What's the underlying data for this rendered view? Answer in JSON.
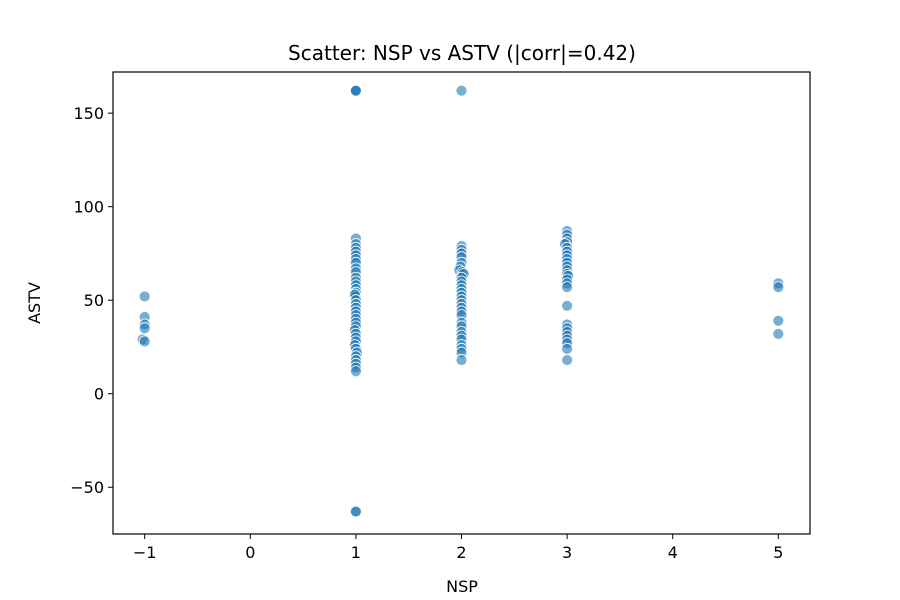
{
  "chart_data": {
    "type": "scatter",
    "title": "Scatter: NSP vs ASTV (|corr|=0.42)",
    "xlabel": "NSP",
    "ylabel": "ASTV",
    "xlim": [
      -1.3,
      5.3
    ],
    "ylim": [
      -75,
      172
    ],
    "xticks": [
      -1,
      0,
      1,
      2,
      3,
      4,
      5
    ],
    "xtick_labels": [
      "−1",
      "0",
      "1",
      "2",
      "3",
      "4",
      "5"
    ],
    "yticks": [
      -50,
      0,
      50,
      100,
      150
    ],
    "ytick_labels": [
      "−50",
      "0",
      "50",
      "100",
      "150"
    ],
    "grid": false,
    "marker_color": "#1f77b4",
    "marker_alpha": 0.6,
    "points": [
      {
        "x": -1,
        "y": 52
      },
      {
        "x": -1,
        "y": 41
      },
      {
        "x": -1,
        "y": 37
      },
      {
        "x": -1,
        "y": 35
      },
      {
        "x": -1.02,
        "y": 29
      },
      {
        "x": -1,
        "y": 28
      },
      {
        "x": 1,
        "y": 162
      },
      {
        "x": 1,
        "y": 162
      },
      {
        "x": 1,
        "y": 162
      },
      {
        "x": 1,
        "y": 83
      },
      {
        "x": 1,
        "y": 80
      },
      {
        "x": 1,
        "y": 78
      },
      {
        "x": 1,
        "y": 76
      },
      {
        "x": 1,
        "y": 74
      },
      {
        "x": 1,
        "y": 72
      },
      {
        "x": 1,
        "y": 70
      },
      {
        "x": 1,
        "y": 67
      },
      {
        "x": 1,
        "y": 65
      },
      {
        "x": 1,
        "y": 62
      },
      {
        "x": 1,
        "y": 60
      },
      {
        "x": 1,
        "y": 58
      },
      {
        "x": 1,
        "y": 56
      },
      {
        "x": 1,
        "y": 54
      },
      {
        "x": 1,
        "y": 52
      },
      {
        "x": 0.99,
        "y": 53
      },
      {
        "x": 1,
        "y": 50
      },
      {
        "x": 1,
        "y": 48
      },
      {
        "x": 1,
        "y": 46
      },
      {
        "x": 1,
        "y": 44
      },
      {
        "x": 1,
        "y": 42
      },
      {
        "x": 1,
        "y": 40
      },
      {
        "x": 1,
        "y": 38
      },
      {
        "x": 1,
        "y": 36
      },
      {
        "x": 0.99,
        "y": 34
      },
      {
        "x": 1,
        "y": 32
      },
      {
        "x": 1,
        "y": 30
      },
      {
        "x": 1,
        "y": 28
      },
      {
        "x": 0.99,
        "y": 26
      },
      {
        "x": 1,
        "y": 24
      },
      {
        "x": 1.01,
        "y": 22
      },
      {
        "x": 1,
        "y": 20
      },
      {
        "x": 1,
        "y": 18
      },
      {
        "x": 1,
        "y": 16
      },
      {
        "x": 1,
        "y": 14
      },
      {
        "x": 1,
        "y": 12
      },
      {
        "x": 1,
        "y": -63
      },
      {
        "x": 1,
        "y": -63
      },
      {
        "x": 2,
        "y": 162
      },
      {
        "x": 2,
        "y": 79
      },
      {
        "x": 2,
        "y": 77
      },
      {
        "x": 2,
        "y": 75
      },
      {
        "x": 2,
        "y": 73
      },
      {
        "x": 2,
        "y": 70
      },
      {
        "x": 1.99,
        "y": 68
      },
      {
        "x": 1.98,
        "y": 66
      },
      {
        "x": 2.01,
        "y": 65
      },
      {
        "x": 2.02,
        "y": 64
      },
      {
        "x": 2,
        "y": 62
      },
      {
        "x": 2,
        "y": 60
      },
      {
        "x": 2,
        "y": 58
      },
      {
        "x": 2,
        "y": 56
      },
      {
        "x": 2,
        "y": 54
      },
      {
        "x": 2,
        "y": 52
      },
      {
        "x": 2,
        "y": 50
      },
      {
        "x": 2,
        "y": 48
      },
      {
        "x": 2,
        "y": 46
      },
      {
        "x": 2,
        "y": 44
      },
      {
        "x": 2,
        "y": 42
      },
      {
        "x": 2,
        "y": 38
      },
      {
        "x": 2,
        "y": 36
      },
      {
        "x": 2,
        "y": 33
      },
      {
        "x": 2,
        "y": 31
      },
      {
        "x": 2,
        "y": 29
      },
      {
        "x": 2,
        "y": 26
      },
      {
        "x": 2,
        "y": 24
      },
      {
        "x": 2,
        "y": 22
      },
      {
        "x": 2,
        "y": 18
      },
      {
        "x": 3,
        "y": 87
      },
      {
        "x": 3,
        "y": 85
      },
      {
        "x": 3,
        "y": 83
      },
      {
        "x": 3,
        "y": 81
      },
      {
        "x": 2.98,
        "y": 80
      },
      {
        "x": 3,
        "y": 78
      },
      {
        "x": 3,
        "y": 76
      },
      {
        "x": 3,
        "y": 74
      },
      {
        "x": 3,
        "y": 72
      },
      {
        "x": 3,
        "y": 70
      },
      {
        "x": 3,
        "y": 68
      },
      {
        "x": 3,
        "y": 66
      },
      {
        "x": 3,
        "y": 64
      },
      {
        "x": 3.01,
        "y": 63
      },
      {
        "x": 3,
        "y": 61
      },
      {
        "x": 3,
        "y": 59
      },
      {
        "x": 3,
        "y": 57
      },
      {
        "x": 3,
        "y": 47
      },
      {
        "x": 3,
        "y": 37
      },
      {
        "x": 3,
        "y": 35
      },
      {
        "x": 3,
        "y": 33
      },
      {
        "x": 3,
        "y": 31
      },
      {
        "x": 3,
        "y": 29
      },
      {
        "x": 3,
        "y": 27
      },
      {
        "x": 3,
        "y": 24
      },
      {
        "x": 3,
        "y": 18
      },
      {
        "x": 5,
        "y": 59
      },
      {
        "x": 5,
        "y": 57
      },
      {
        "x": 5,
        "y": 39
      },
      {
        "x": 5,
        "y": 32
      }
    ]
  }
}
